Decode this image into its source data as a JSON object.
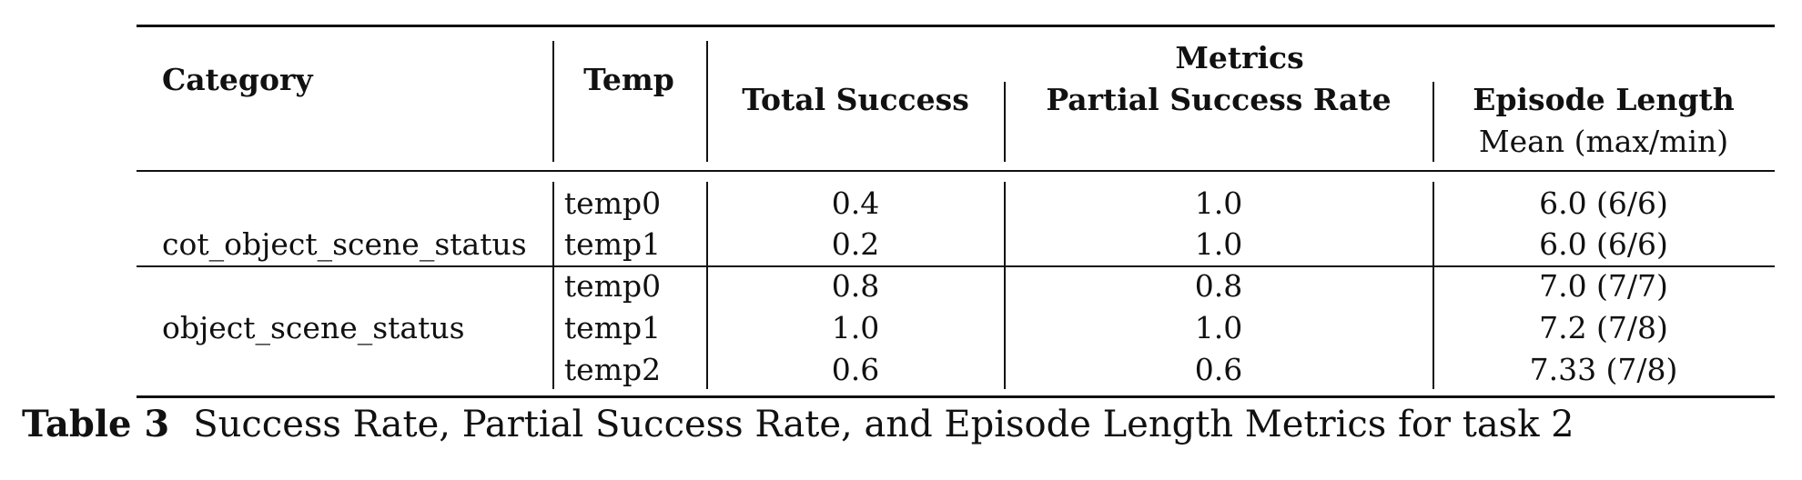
{
  "table": {
    "header": {
      "category": "Category",
      "temp": "Temp",
      "group": "Metrics",
      "total_success": "Total Success",
      "partial_success_rate": "Partial Success Rate",
      "episode_length": "Episode Length",
      "episode_length_sub": "Mean (max/min)"
    },
    "groups": [
      {
        "category": "cot_object_scene_status",
        "rows": [
          {
            "temp": "temp0",
            "total_success": "0.4",
            "partial_success_rate": "1.0",
            "episode_length": "6.0 (6/6)"
          },
          {
            "temp": "temp1",
            "total_success": "0.2",
            "partial_success_rate": "1.0",
            "episode_length": "6.0 (6/6)"
          }
        ]
      },
      {
        "category": "object_scene_status",
        "rows": [
          {
            "temp": "temp0",
            "total_success": "0.8",
            "partial_success_rate": "0.8",
            "episode_length": "7.0 (7/7)"
          },
          {
            "temp": "temp1",
            "total_success": "1.0",
            "partial_success_rate": "1.0",
            "episode_length": "7.2 (7/8)"
          },
          {
            "temp": "temp2",
            "total_success": "0.6",
            "partial_success_rate": "0.6",
            "episode_length": "7.33 (7/8)"
          }
        ]
      }
    ]
  },
  "caption": {
    "label": "Table 3",
    "text": "Success Rate, Partial Success Rate, and Episode Length Metrics for task 2"
  }
}
